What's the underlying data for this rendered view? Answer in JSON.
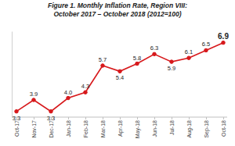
{
  "chart_data": {
    "type": "line",
    "title": "Figure 1. Monthly Inflation Rate, Region VIII:\nOctober 2017 – October 2018 (2012=100)",
    "categories": [
      "Oct-17",
      "Nov-17",
      "Dec-17",
      "Jan-18",
      "Feb-18",
      "Mar-18",
      "Apr-18",
      "May-18",
      "Jun-18",
      "Jul-18",
      "Aug-18",
      "Sep-18",
      "Oct-18"
    ],
    "values": [
      3.3,
      3.9,
      3.3,
      4.0,
      4.3,
      5.7,
      5.4,
      5.8,
      6.3,
      5.9,
      6.1,
      6.5,
      6.9
    ],
    "value_labels": [
      "3.3",
      "3.9",
      "3.3",
      "4.0",
      "4.3",
      "5.7",
      "5.4",
      "5.8",
      "6.3",
      "5.9",
      "6.1",
      "6.5",
      "6.9"
    ],
    "color": "#d7191c",
    "marker": "circle",
    "line_style": "solid",
    "ylim": [
      3,
      7.5
    ],
    "data_labels": true,
    "tick_labels": "x",
    "grid": false
  }
}
